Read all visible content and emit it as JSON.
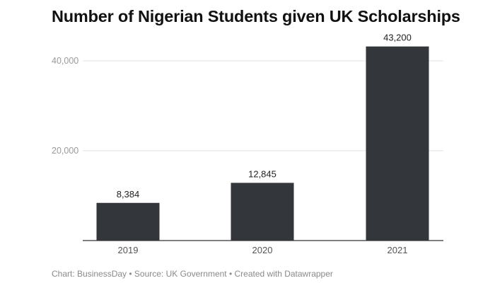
{
  "chart_data": {
    "type": "bar",
    "title": "Number of Nigerian Students given UK Scholarships",
    "categories": [
      "2019",
      "2020",
      "2021"
    ],
    "values": [
      8384,
      12845,
      43200
    ],
    "value_labels": [
      "8,384",
      "12,845",
      "43,200"
    ],
    "y_ticks": [
      20000,
      40000
    ],
    "y_tick_labels": [
      "20,000",
      "40,000"
    ],
    "ylim": [
      0,
      43200
    ],
    "grid": true,
    "bar_color": "#33363a",
    "xlabel": "",
    "ylabel": ""
  },
  "footer": "Chart: BusinessDay • Source: UK Government • Created with Datawrapper"
}
